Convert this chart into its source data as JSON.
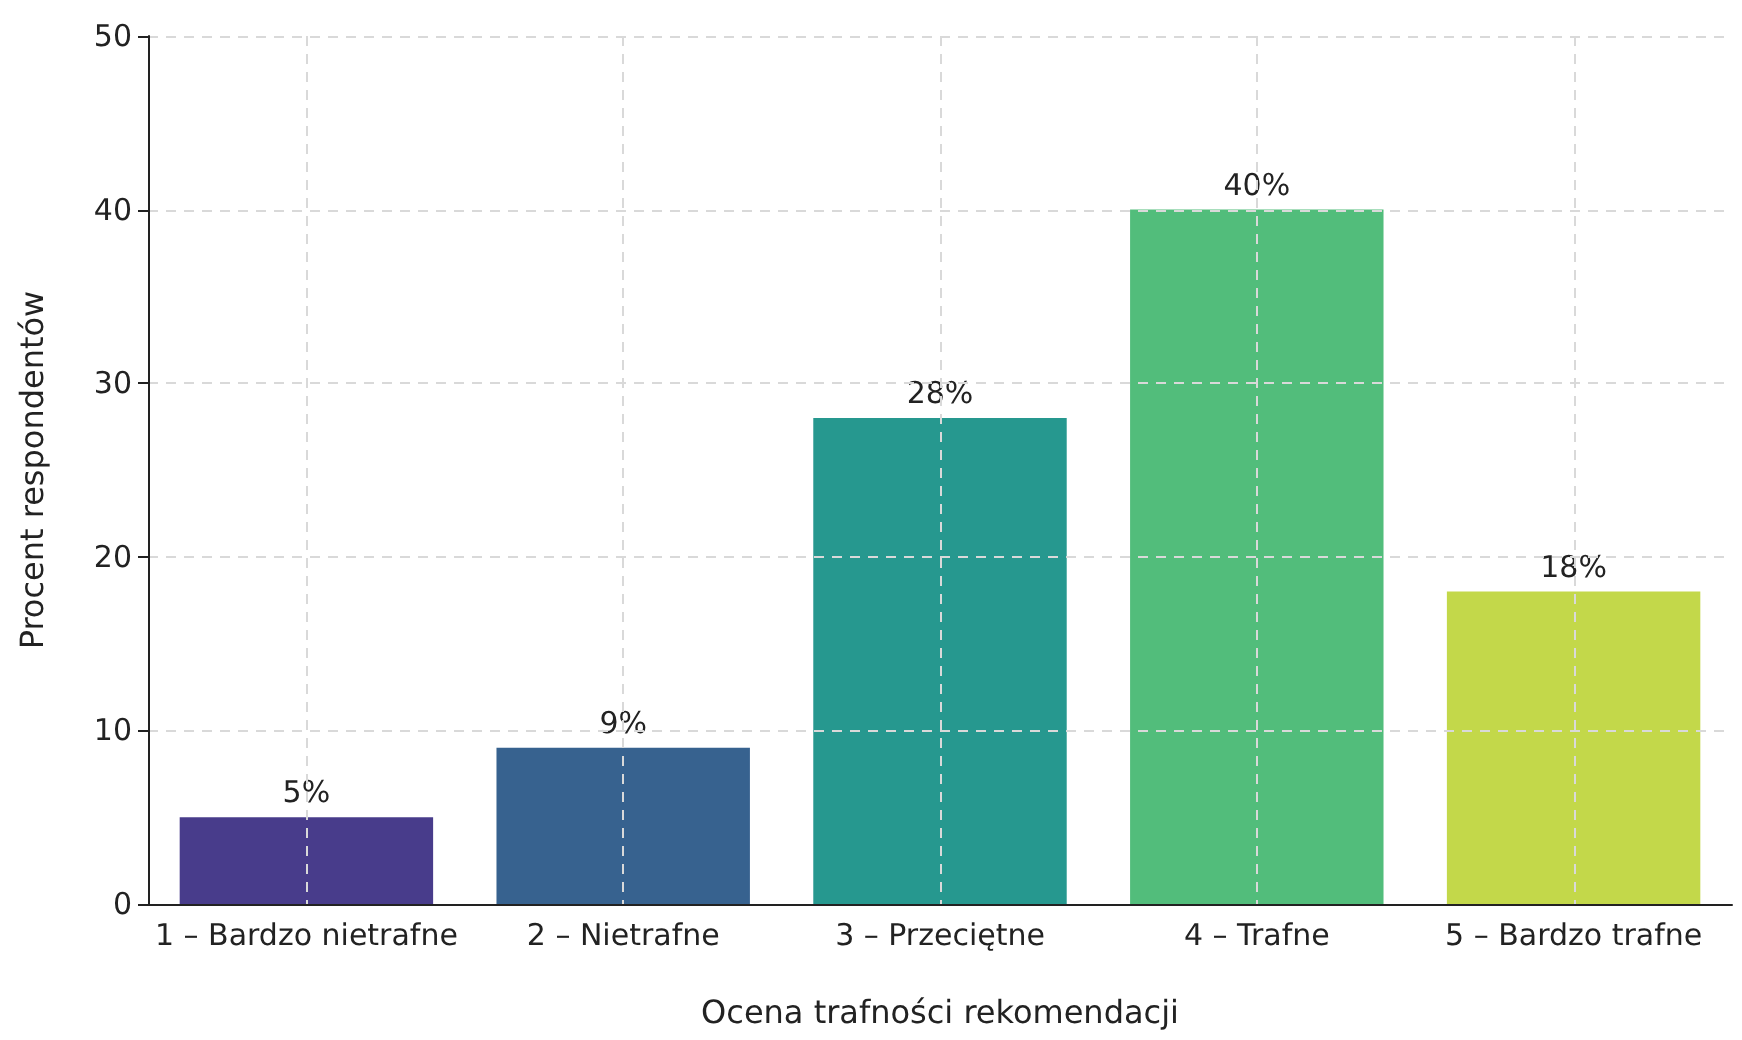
{
  "chart_data": {
    "type": "bar",
    "xlabel": "Ocena trafności rekomendacji",
    "ylabel": "Procent respondentów",
    "categories": [
      "1 – Bardzo nietrafne",
      "2 – Nietrafne",
      "3 – Przeciętne",
      "4 – Trafne",
      "5 – Bardzo trafne"
    ],
    "values": [
      5,
      9,
      28,
      40,
      18
    ],
    "colors": [
      "#483c8b",
      "#37628f",
      "#26988f",
      "#52bd7b",
      "#c3d84a"
    ],
    "value_labels": [
      "5%",
      "9%",
      "28%",
      "40%",
      "18%"
    ],
    "ylim": [
      0,
      50
    ],
    "yticks": [
      0,
      10,
      20,
      30,
      40,
      50
    ],
    "grid": true
  }
}
